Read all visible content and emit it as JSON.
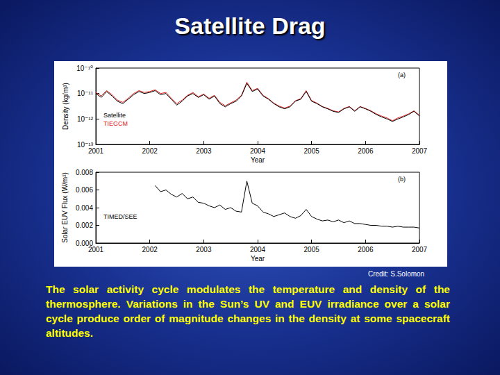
{
  "title": "Satellite Drag",
  "credit": "Credit: S.Solomon",
  "caption": "The solar activity cycle modulates the temperature and density of the thermosphere. Variations in the Sun’s UV and EUV irradiance over a solar cycle produce order of magnitude changes in the density at some spacecraft altitudes.",
  "chart_data": [
    {
      "type": "line",
      "annotation": "(a)",
      "xlabel": "Year",
      "ylabel": "Density (kg/m³)",
      "log": "y",
      "legend": "left",
      "grid": false,
      "xlim": [
        2001,
        2007
      ],
      "xticks": [
        2001,
        2002,
        2003,
        2004,
        2005,
        2006,
        2007
      ],
      "ylim": [
        1e-13,
        1e-10
      ],
      "yticks": [
        {
          "value": 1e-13,
          "label": "10⁻¹³"
        },
        {
          "value": 1e-12,
          "label": "10⁻¹²"
        },
        {
          "value": 1e-11,
          "label": "10⁻¹¹"
        },
        {
          "value": 1e-10,
          "label": "10⁻¹⁰"
        }
      ],
      "x": [
        2001.0,
        2001.1,
        2001.2,
        2001.3,
        2001.4,
        2001.5,
        2001.6,
        2001.7,
        2001.8,
        2001.9,
        2002.0,
        2002.1,
        2002.2,
        2002.3,
        2002.4,
        2002.5,
        2002.6,
        2002.7,
        2002.8,
        2002.9,
        2003.0,
        2003.1,
        2003.2,
        2003.3,
        2003.4,
        2003.5,
        2003.6,
        2003.7,
        2003.8,
        2003.9,
        2004.0,
        2004.1,
        2004.2,
        2004.3,
        2004.4,
        2004.5,
        2004.6,
        2004.7,
        2004.8,
        2004.9,
        2005.0,
        2005.1,
        2005.2,
        2005.3,
        2005.4,
        2005.5,
        2005.6,
        2005.7,
        2005.8,
        2005.9,
        2006.0,
        2006.1,
        2006.2,
        2006.3,
        2006.4,
        2006.5,
        2006.6,
        2006.7,
        2006.8,
        2006.9,
        2007.0
      ],
      "series": [
        {
          "name": "Satellite",
          "color": "#000000",
          "values": [
            1e-11,
            7e-12,
            1.2e-11,
            8e-12,
            5e-12,
            4e-12,
            6e-12,
            9e-12,
            1.2e-11,
            1e-11,
            1.1e-11,
            1.3e-11,
            9e-12,
            1e-11,
            6e-12,
            3.5e-12,
            5e-12,
            8e-12,
            1e-11,
            7e-12,
            9e-12,
            6e-12,
            8e-12,
            4e-12,
            3e-12,
            4e-12,
            5e-12,
            8e-12,
            2.5e-11,
            1.2e-11,
            1.5e-11,
            8e-12,
            6e-12,
            4e-12,
            3e-12,
            2.5e-12,
            3e-12,
            5e-12,
            6e-12,
            1.2e-11,
            5e-12,
            4e-12,
            3e-12,
            2.5e-12,
            2e-12,
            1.8e-12,
            2.5e-12,
            3e-12,
            2e-12,
            3e-12,
            2.5e-12,
            2e-12,
            1.5e-12,
            1.2e-12,
            1e-12,
            8e-13,
            1e-12,
            1.2e-12,
            1.5e-12,
            2e-12,
            1.3e-12
          ]
        },
        {
          "name": "TIEGCM",
          "color": "#e0201b",
          "values": [
            1.1e-11,
            8e-12,
            1.3e-11,
            9e-12,
            5.5e-12,
            4.5e-12,
            6.5e-12,
            1e-11,
            1.3e-11,
            1.1e-11,
            1.2e-11,
            1.4e-11,
            1e-11,
            1.1e-11,
            6.5e-12,
            4e-12,
            5.5e-12,
            8.5e-12,
            1.1e-11,
            7.5e-12,
            9.5e-12,
            6.5e-12,
            8.5e-12,
            4.5e-12,
            3.3e-12,
            4.3e-12,
            5.5e-12,
            8.5e-12,
            2.8e-11,
            1.3e-11,
            1.6e-11,
            8.5e-12,
            6.3e-12,
            4.2e-12,
            3.2e-12,
            2.7e-12,
            3.2e-12,
            5.2e-12,
            6.3e-12,
            1.3e-11,
            5.3e-12,
            4.2e-12,
            3.1e-12,
            2.6e-12,
            2.1e-12,
            1.9e-12,
            2.6e-12,
            3.1e-12,
            2.1e-12,
            3.1e-12,
            2.6e-12,
            2.1e-12,
            1.6e-12,
            1.3e-12,
            1.1e-12,
            8.5e-13,
            1.1e-12,
            1.3e-12,
            1.6e-12,
            2.1e-12,
            1.4e-12
          ]
        }
      ]
    },
    {
      "type": "line",
      "annotation": "(b)",
      "xlabel": "Year",
      "ylabel": "Solar EUV Flux (W/m²)",
      "legend": "left",
      "grid": false,
      "xlim": [
        2001,
        2007
      ],
      "xticks": [
        2001,
        2002,
        2003,
        2004,
        2005,
        2006,
        2007
      ],
      "ylim": [
        0,
        0.008
      ],
      "yticks": [
        {
          "value": 0,
          "label": "0.000"
        },
        0.002,
        0.004,
        0.006,
        0.008
      ],
      "x": [
        2001.0,
        2001.1,
        2001.2,
        2001.3,
        2001.4,
        2001.5,
        2001.6,
        2001.7,
        2001.8,
        2001.9,
        2002.0,
        2002.1,
        2002.2,
        2002.3,
        2002.4,
        2002.5,
        2002.6,
        2002.7,
        2002.8,
        2002.9,
        2003.0,
        2003.1,
        2003.2,
        2003.3,
        2003.4,
        2003.5,
        2003.6,
        2003.7,
        2003.8,
        2003.9,
        2004.0,
        2004.1,
        2004.2,
        2004.3,
        2004.4,
        2004.5,
        2004.6,
        2004.7,
        2004.8,
        2004.9,
        2005.0,
        2005.1,
        2005.2,
        2005.3,
        2005.4,
        2005.5,
        2005.6,
        2005.7,
        2005.8,
        2005.9,
        2006.0,
        2006.1,
        2006.2,
        2006.3,
        2006.4,
        2006.5,
        2006.6,
        2006.7,
        2006.8,
        2006.9,
        2007.0
      ],
      "series": [
        {
          "name": "TIMED/SEE",
          "color": "#000000",
          "values": [
            null,
            null,
            null,
            null,
            null,
            null,
            null,
            null,
            null,
            null,
            null,
            0.0065,
            0.0058,
            0.006,
            0.0055,
            0.0052,
            0.0056,
            0.005,
            0.0052,
            0.0046,
            0.0045,
            0.0042,
            0.004,
            0.0043,
            0.0038,
            0.004,
            0.0036,
            0.0035,
            0.007,
            0.0045,
            0.0042,
            0.0035,
            0.0033,
            0.003,
            0.0032,
            0.0034,
            0.003,
            0.0028,
            0.0031,
            0.0038,
            0.003,
            0.0027,
            0.0025,
            0.0026,
            0.0024,
            0.0026,
            0.0023,
            0.0025,
            0.0022,
            0.0022,
            0.0021,
            0.002,
            0.002,
            0.0019,
            0.0019,
            0.0018,
            0.0019,
            0.0018,
            0.0018,
            0.0018,
            0.0017
          ]
        }
      ]
    }
  ]
}
